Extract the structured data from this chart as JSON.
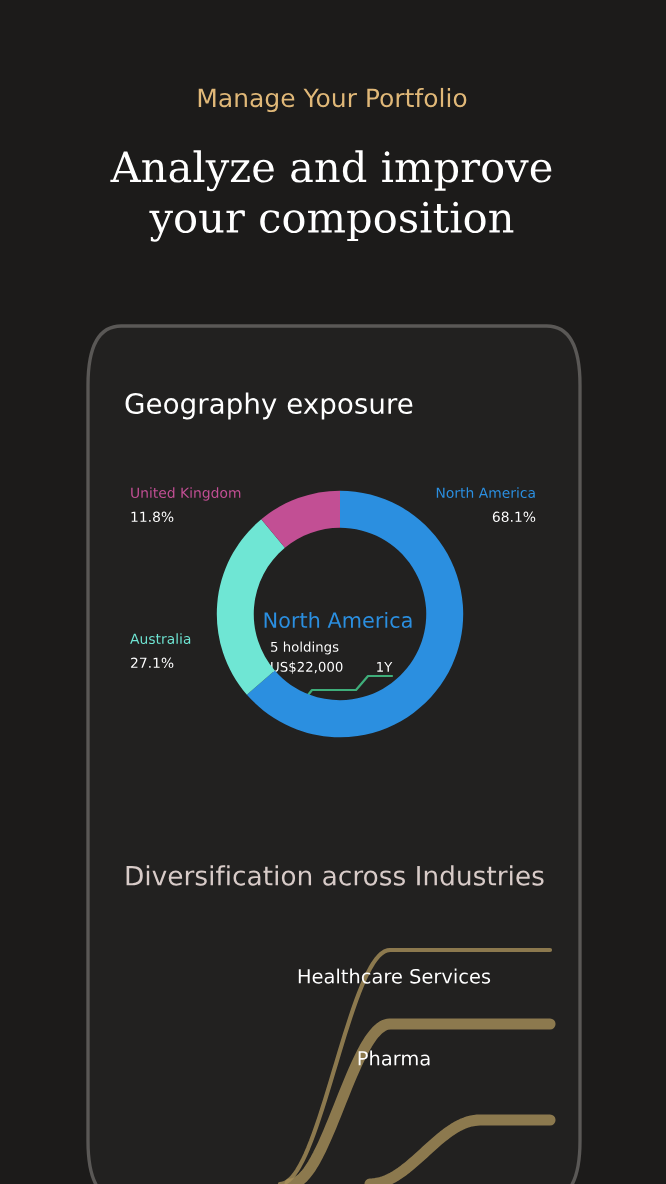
{
  "chart_data": [
    {
      "type": "donut",
      "title": "Geography exposure",
      "categories": [
        "North America",
        "Australia",
        "United Kingdom"
      ],
      "values": [
        68.1,
        27.1,
        11.8
      ],
      "value_labels": [
        "68.1%",
        "27.1%",
        "11.8%"
      ],
      "colors": [
        "#2b8fe0",
        "#6fe6d4",
        "#c24f94"
      ],
      "annotations": [
        "Manage Your Portfolio",
        "Analyze and improve\nyour composition",
        "North America",
        "5 holdings",
        "US$22,000",
        "1Y"
      ]
    },
    {
      "type": "other",
      "title": "Diversification across Industries",
      "annotations": [
        "Healthcare Services",
        "Pharma"
      ]
    }
  ]
}
